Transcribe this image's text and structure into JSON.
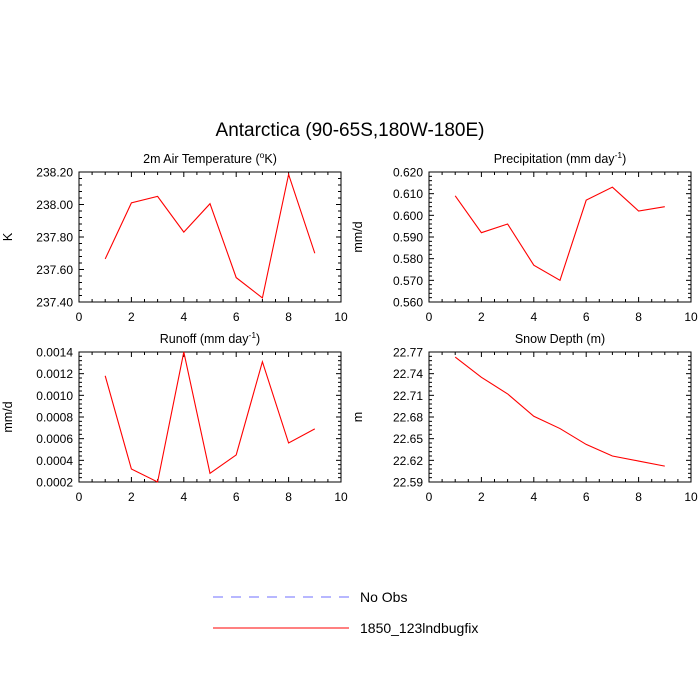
{
  "figure": {
    "title": "Antarctica (90-65S,180W-180E)"
  },
  "colors": {
    "model": "#ff0000",
    "obs": "#6f6fff",
    "axis": "#000000"
  },
  "legend": {
    "items": [
      {
        "label": "No Obs",
        "style": "dashed",
        "color": "#6f6fff"
      },
      {
        "label": "1850_123lndbugfix",
        "style": "solid",
        "color": "#ff0000"
      }
    ]
  },
  "chart_data": [
    {
      "type": "line",
      "title": "2m Air Temperature (°K)",
      "title_parts": {
        "pre": "2m Air Temperature (",
        "sup": "o",
        "post": "K)"
      },
      "ylabel": "K",
      "xlim": [
        0,
        10
      ],
      "ylim": [
        237.4,
        238.2
      ],
      "xticks": [
        0,
        2,
        4,
        6,
        8,
        10
      ],
      "yticks": [
        237.4,
        237.6,
        237.8,
        238.0,
        238.2
      ],
      "ytick_labels": [
        "237.40",
        "237.60",
        "237.80",
        "238.00",
        "238.20"
      ],
      "series": [
        {
          "name": "1850_123lndbugfix",
          "x": [
            1,
            2,
            3,
            4,
            5,
            6,
            7,
            8,
            9
          ],
          "values": [
            237.665,
            238.01,
            238.05,
            237.83,
            238.005,
            237.55,
            237.425,
            238.185,
            237.7
          ]
        }
      ]
    },
    {
      "type": "line",
      "title": "Precipitation (mm day-1)",
      "title_parts": {
        "pre": "Precipitation (mm day",
        "sup": "-1",
        "post": ")"
      },
      "ylabel": "mm/d",
      "xlim": [
        0,
        10
      ],
      "ylim": [
        0.56,
        0.62
      ],
      "xticks": [
        0,
        2,
        4,
        6,
        8,
        10
      ],
      "yticks": [
        0.56,
        0.57,
        0.58,
        0.59,
        0.6,
        0.61,
        0.62
      ],
      "ytick_labels": [
        "0.560",
        "0.570",
        "0.580",
        "0.590",
        "0.600",
        "0.610",
        "0.620"
      ],
      "series": [
        {
          "name": "1850_123lndbugfix",
          "x": [
            1,
            2,
            3,
            4,
            5,
            6,
            7,
            8,
            9
          ],
          "values": [
            0.609,
            0.592,
            0.596,
            0.577,
            0.57,
            0.607,
            0.613,
            0.602,
            0.604
          ]
        }
      ]
    },
    {
      "type": "line",
      "title": "Runoff (mm day-1)",
      "title_parts": {
        "pre": "Runoff (mm day",
        "sup": "-1",
        "post": ")"
      },
      "ylabel": "mm/d",
      "xlim": [
        0,
        10
      ],
      "ylim": [
        0.0002,
        0.0014
      ],
      "xticks": [
        0,
        2,
        4,
        6,
        8,
        10
      ],
      "yticks": [
        0.0002,
        0.0004,
        0.0006,
        0.0008,
        0.001,
        0.0012,
        0.0014
      ],
      "ytick_labels": [
        "0.0002",
        "0.0004",
        "0.0006",
        "0.0008",
        "0.0010",
        "0.0012",
        "0.0014"
      ],
      "series": [
        {
          "name": "1850_123lndbugfix",
          "x": [
            1,
            2,
            3,
            4,
            5,
            6,
            7,
            8,
            9
          ],
          "values": [
            0.00118,
            0.00032,
            0.0002,
            0.0014,
            0.00028,
            0.00045,
            0.00131,
            0.00056,
            0.00069
          ]
        }
      ]
    },
    {
      "type": "line",
      "title": "Snow Depth (m)",
      "title_parts": {
        "pre": "Snow Depth (m)",
        "sup": "",
        "post": ""
      },
      "ylabel": "m",
      "xlim": [
        0,
        10
      ],
      "ylim": [
        22.59,
        22.77
      ],
      "xticks": [
        0,
        2,
        4,
        6,
        8,
        10
      ],
      "yticks": [
        22.59,
        22.62,
        22.65,
        22.68,
        22.71,
        22.74,
        22.77
      ],
      "ytick_labels": [
        "22.59",
        "22.62",
        "22.65",
        "22.68",
        "22.71",
        "22.74",
        "22.77"
      ],
      "series": [
        {
          "name": "1850_123lndbugfix",
          "x": [
            1,
            2,
            3,
            4,
            5,
            6,
            7,
            8,
            9
          ],
          "values": [
            22.763,
            22.735,
            22.712,
            22.681,
            22.664,
            22.642,
            22.626,
            22.619,
            22.612
          ]
        }
      ]
    }
  ]
}
